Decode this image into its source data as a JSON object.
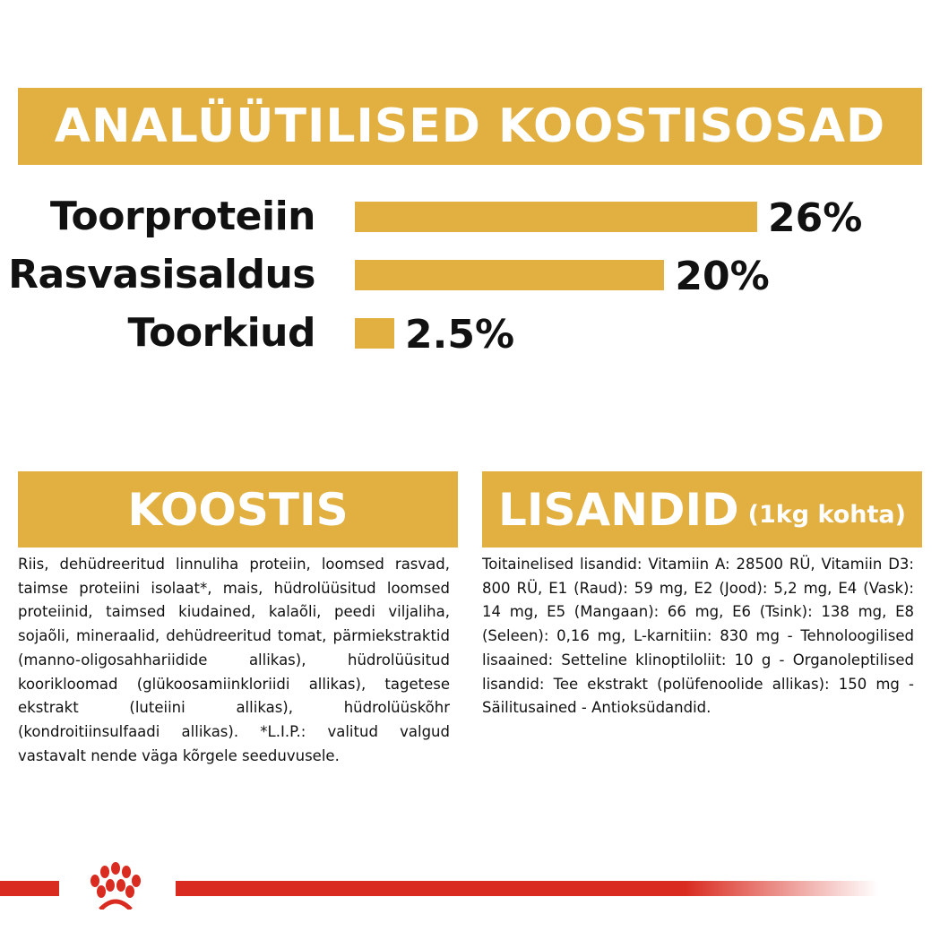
{
  "header": {
    "title": "ANALÜÜTILISED KOOSTISOSAD"
  },
  "nutrients": [
    {
      "label": "Toorproteiin",
      "value": "26%",
      "percent": 26
    },
    {
      "label": "Rasvasisaldus",
      "value": "20%",
      "percent": 20
    },
    {
      "label": "Toorkiud",
      "value": "2.5%",
      "percent": 2.5
    }
  ],
  "composition": {
    "title": "KOOSTIS",
    "text": "Riis, dehüdreeritud linnuliha proteiin, loomsed rasvad, taimse proteiini isolaat*, mais, hüdrolüüsitud loomsed proteiinid, taimsed kiudained, kalaõli, peedi viljaliha, sojaõli, mineraalid, dehüdreeritud tomat, pärmiekstraktid (manno-oligosahhariidide allikas), hüdrolüüsitud koorikloomad (glükoosamiinkloriidi allikas), tagetese ekstrakt (luteiini allikas), hüdrolüüskõhr (kondroitiinsulfaadi allikas). *L.I.P.: valitud valgud vastavalt nende väga kõrgele seeduvusele."
  },
  "additives": {
    "title": "LISANDID",
    "subtitle": "(1kg kohta)",
    "text": "Toitainelised lisandid: Vitamiin A: 28500 RÜ, Vitamiin D3: 800 RÜ, E1 (Raud): 59 mg, E2 (Jood): 5,2 mg, E4 (Vask): 14 mg, E5 (Mangaan): 66 mg, E6 (Tsink): 138 mg, E8 (Seleen): 0,16 mg, L-karnitiin: 830 mg - Tehnoloogilised lisaained: Setteline klinoptiloliit: 10 g - Organoleptilised lisandid: Tee ekstrakt (polüfenoolide allikas): 150 mg - Säilitusained - Antioksüdandid."
  },
  "colors": {
    "accent": "#e1b041",
    "brand_red": "#d92b20"
  },
  "logo": {
    "icon": "royal-canin-crown-logo"
  }
}
